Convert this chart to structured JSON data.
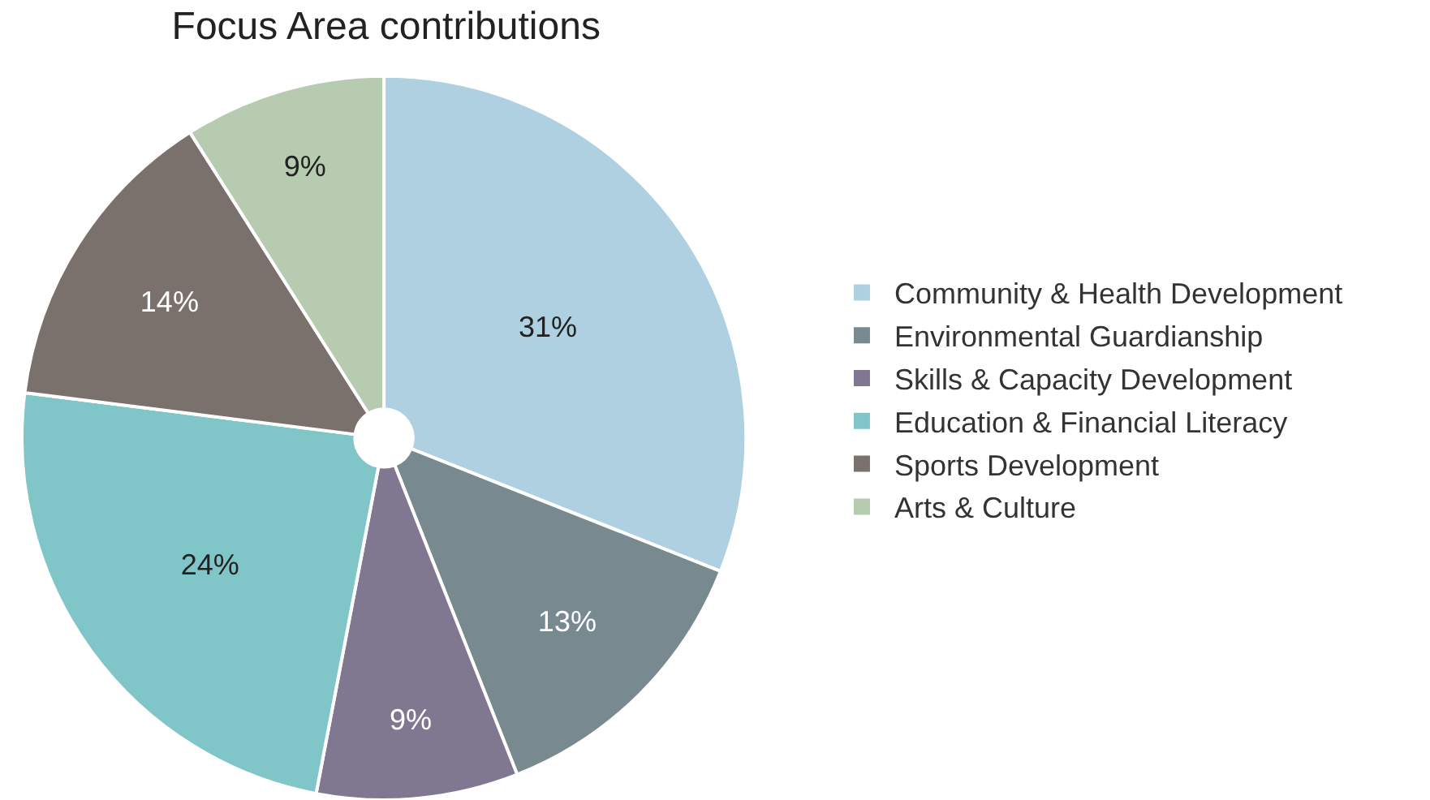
{
  "chart_data": {
    "type": "pie",
    "title": "Focus Area contributions",
    "categories": [
      "Community & Health Development",
      "Environmental Guardianship",
      "Skills & Capacity Development",
      "Education & Financial Literacy",
      "Sports Development",
      "Arts & Culture"
    ],
    "values": [
      31,
      13,
      9,
      24,
      14,
      9
    ],
    "colors": [
      "#aed0e0",
      "#788a90",
      "#807890",
      "#80c6c8",
      "#7a706c",
      "#b7cbb1"
    ],
    "value_labels": [
      "31%",
      "13%",
      "9%",
      "24%",
      "14%",
      "9%"
    ],
    "legend": "right"
  }
}
